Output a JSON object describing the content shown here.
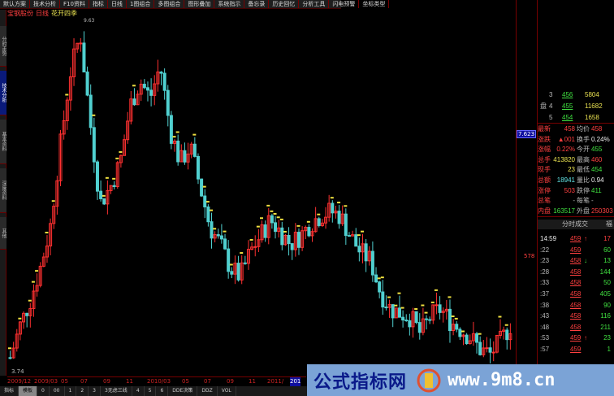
{
  "menu": [
    "默认方案",
    "技术分析",
    "F10资料",
    "指标",
    "日线",
    "1图组合",
    "多图组合",
    "图形叠加",
    "系统指示",
    "备忘录",
    "历史回忆",
    "分析工具",
    "闪电预警",
    "坐标类型"
  ],
  "title": {
    "stock": "宝钢股份",
    "period": "日线",
    "indicator": "花开四季"
  },
  "sidebar": [
    {
      "label": "分时走势",
      "active": false
    },
    {
      "label": "技术分析",
      "active": true
    },
    {
      "label": "基本资料",
      "active": false
    },
    {
      "label": "深度资料",
      "active": false
    },
    {
      "label": "其他",
      "active": false
    }
  ],
  "axis": {
    "price_label": "7.623",
    "mid_label": "578",
    "low_label": "3.74",
    "top_marker": "9.63"
  },
  "colors": {
    "up": "#ff3030",
    "down": "#50d0d0",
    "signal": "#f0e040",
    "accent": "#1010a0"
  },
  "order_book": [
    {
      "side": "",
      "level": "3",
      "price": "456",
      "volume": "5804"
    },
    {
      "side": "盘",
      "level": "4",
      "price": "455",
      "volume": "11682"
    },
    {
      "side": "",
      "level": "5",
      "price": "454",
      "volume": "1658"
    }
  ],
  "quote": [
    [
      "最新",
      "458",
      "均价",
      "458"
    ],
    [
      "涨跌",
      "▲001",
      "换手",
      "0.24%"
    ],
    [
      "涨幅",
      "0.22%",
      "今开",
      "455"
    ],
    [
      "总手",
      "413820",
      "最高",
      "460"
    ],
    [
      "现手",
      "23",
      "最低",
      "454"
    ],
    [
      "总额",
      "18941",
      "量比",
      "0.94"
    ],
    [
      "涨停",
      "503",
      "跌停",
      "411"
    ],
    [
      "总笔",
      "-",
      "每笔",
      "-"
    ],
    [
      "内盘",
      "163517",
      "外盘",
      "250303"
    ]
  ],
  "ticks_header": "分时成交",
  "ticks_header_extra": "福",
  "ticks": [
    [
      "14:59",
      "459",
      "↑",
      "17"
    ],
    [
      ":22",
      "459",
      "",
      "60"
    ],
    [
      ":23",
      "458",
      "↓",
      "13"
    ],
    [
      ":28",
      "458",
      "",
      "144"
    ],
    [
      ":33",
      "458",
      "",
      "50"
    ],
    [
      ":37",
      "458",
      "",
      "405"
    ],
    [
      ":38",
      "458",
      "",
      "90"
    ],
    [
      ":43",
      "458",
      "",
      "116"
    ],
    [
      ":48",
      "458",
      "",
      "211"
    ],
    [
      ":53",
      "459",
      "↑",
      "23"
    ],
    [
      ":57",
      "459",
      "",
      "1"
    ]
  ],
  "date_axis": [
    "2009/12",
    "2009/03",
    "05",
    "07",
    "09",
    "11",
    "2010/03",
    "05",
    "07",
    "09",
    "11",
    "2011/",
    "201"
  ],
  "bottom_tabs": [
    "指标",
    "模板",
    "0",
    "00",
    "1",
    "2",
    "3",
    "3无虑三线",
    "4",
    "5",
    "6",
    "DDE决策",
    "DDZ",
    "VOL"
  ],
  "watermark": {
    "cn": "公式指标网",
    "url": "www.9m8.cn"
  },
  "chart_data": {
    "type": "candlestick",
    "ylim": [
      3.74,
      9.4
    ],
    "closes": [
      3.94,
      4.46,
      4.86,
      5.39,
      6.04,
      7.36,
      8.54,
      9.2,
      7.75,
      6.44,
      6.7,
      7.1,
      8.02,
      8.41,
      8.15,
      8.67,
      7.62,
      7.1,
      7.36,
      6.7,
      6.04,
      5.78,
      5.39,
      5.25,
      5.65,
      5.91,
      6.17,
      5.98,
      5.78,
      5.91,
      6.11,
      6.24,
      6.31,
      6.24,
      5.91,
      5.65,
      5.52,
      5.0,
      4.73,
      4.66,
      4.6,
      4.33,
      4.6,
      4.73,
      4.53,
      4.4,
      4.27,
      4.07,
      4.0,
      4.2,
      4.46
    ]
  }
}
